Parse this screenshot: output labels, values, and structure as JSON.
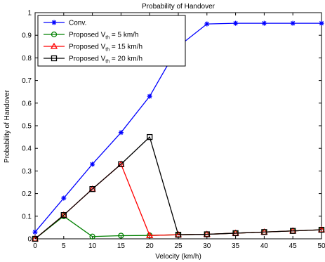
{
  "chart_data": {
    "type": "line",
    "title": "Probability of Handover",
    "xlabel": "Velocity (km/h)",
    "ylabel": "Probability of Handover",
    "xlim": [
      0,
      50
    ],
    "ylim": [
      0,
      1
    ],
    "x_ticks": [
      "0",
      "5",
      "10",
      "15",
      "20",
      "25",
      "30",
      "35",
      "40",
      "45",
      "50"
    ],
    "y_ticks": [
      "0",
      "0.1",
      "0.2",
      "0.3",
      "0.4",
      "0.5",
      "0.6",
      "0.7",
      "0.8",
      "0.9",
      "1"
    ],
    "grid": false,
    "legend_position": "top-left",
    "x": [
      0,
      5,
      10,
      15,
      20,
      25,
      30,
      35,
      40,
      45,
      50
    ],
    "series": [
      {
        "name": "Conv.",
        "legend_parts": [
          "Conv."
        ],
        "color": "#0000ff",
        "marker": "asterisk",
        "values": [
          0.03,
          0.18,
          0.33,
          0.47,
          0.63,
          0.85,
          0.95,
          0.953,
          0.953,
          0.953,
          0.953
        ]
      },
      {
        "name": "Proposed V_th = 5 km/h",
        "legend_parts": [
          "Proposed  V",
          "th",
          " = 5 km/h"
        ],
        "color": "#008000",
        "marker": "circle",
        "values": [
          0.0,
          0.1,
          0.01,
          0.014,
          0.015,
          0.018,
          0.02,
          0.025,
          0.03,
          0.035,
          0.04
        ]
      },
      {
        "name": "Proposed V_th = 15 km/h",
        "legend_parts": [
          "Proposed  V",
          "th",
          " = 15 km/h"
        ],
        "color": "#ff0000",
        "marker": "triangle",
        "values": [
          0.0,
          0.105,
          0.22,
          0.33,
          0.015,
          0.018,
          0.02,
          0.025,
          0.03,
          0.035,
          0.04
        ]
      },
      {
        "name": "Proposed V_th = 20 km/h",
        "legend_parts": [
          "Proposed  V",
          "th",
          " = 20 km/h"
        ],
        "color": "#000000",
        "marker": "square",
        "values": [
          0.0,
          0.105,
          0.22,
          0.33,
          0.45,
          0.018,
          0.02,
          0.025,
          0.03,
          0.035,
          0.04
        ]
      }
    ]
  }
}
